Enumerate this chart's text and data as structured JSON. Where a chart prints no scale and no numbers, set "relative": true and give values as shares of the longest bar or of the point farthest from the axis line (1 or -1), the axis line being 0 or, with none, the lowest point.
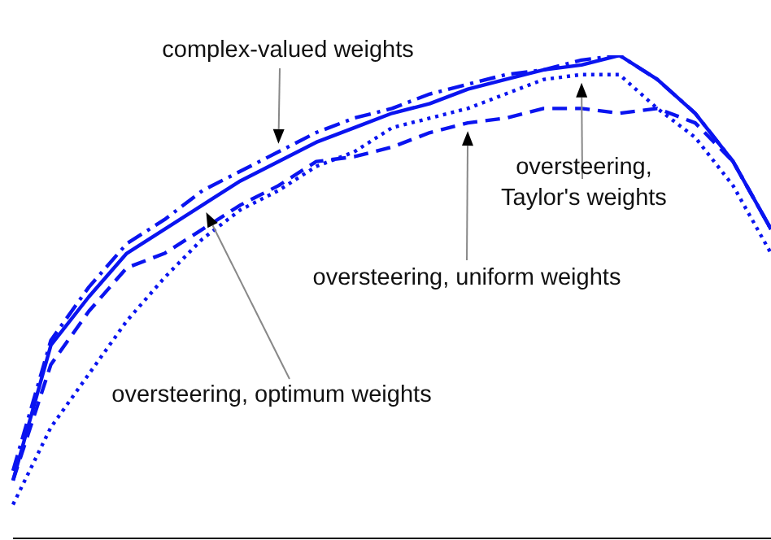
{
  "chart_data": {
    "type": "line",
    "relative": true,
    "grid": false,
    "legend": false,
    "marker": "none",
    "categories": [
      null,
      null,
      null,
      null,
      null,
      null,
      null,
      null,
      null,
      null,
      null,
      null,
      null,
      null,
      null,
      null,
      null,
      null,
      null,
      null,
      null
    ],
    "annotations": [
      "oversteering, optimum weights",
      "complex-valued weights",
      "oversteering, Taylor's weights",
      "oversteering, uniform weights"
    ],
    "series": [
      {
        "color": "#0a14f0",
        "line_style": "solid",
        "values": [
          0.12,
          0.4,
          0.5,
          0.59,
          0.64,
          0.69,
          0.74,
          0.78,
          0.82,
          0.85,
          0.88,
          0.9,
          0.93,
          0.95,
          0.97,
          0.98,
          1.0,
          0.95,
          0.88,
          0.78,
          0.64
        ]
      },
      {
        "color": "#0a14f0",
        "line_style": "dashdot",
        "values": [
          0.14,
          0.41,
          0.52,
          0.61,
          0.66,
          0.72,
          0.76,
          0.8,
          0.84,
          0.87,
          0.89,
          0.92,
          0.94,
          0.96,
          0.97,
          0.99,
          1.0,
          0.95,
          0.88,
          0.78,
          0.64
        ]
      },
      {
        "color": "#0a14f0",
        "line_style": "dotted",
        "values": [
          0.07,
          0.23,
          0.34,
          0.45,
          0.54,
          0.62,
          0.68,
          0.72,
          0.77,
          0.8,
          0.85,
          0.87,
          0.89,
          0.92,
          0.95,
          0.96,
          0.96,
          0.89,
          0.83,
          0.73,
          0.59
        ]
      },
      {
        "color": "#0a14f0",
        "line_style": "dashed",
        "values": [
          0.12,
          0.36,
          0.47,
          0.56,
          0.59,
          0.64,
          0.69,
          0.73,
          0.78,
          0.79,
          0.81,
          0.84,
          0.86,
          0.87,
          0.89,
          0.89,
          0.88,
          0.89,
          0.86,
          0.78,
          0.64
        ]
      }
    ]
  }
}
